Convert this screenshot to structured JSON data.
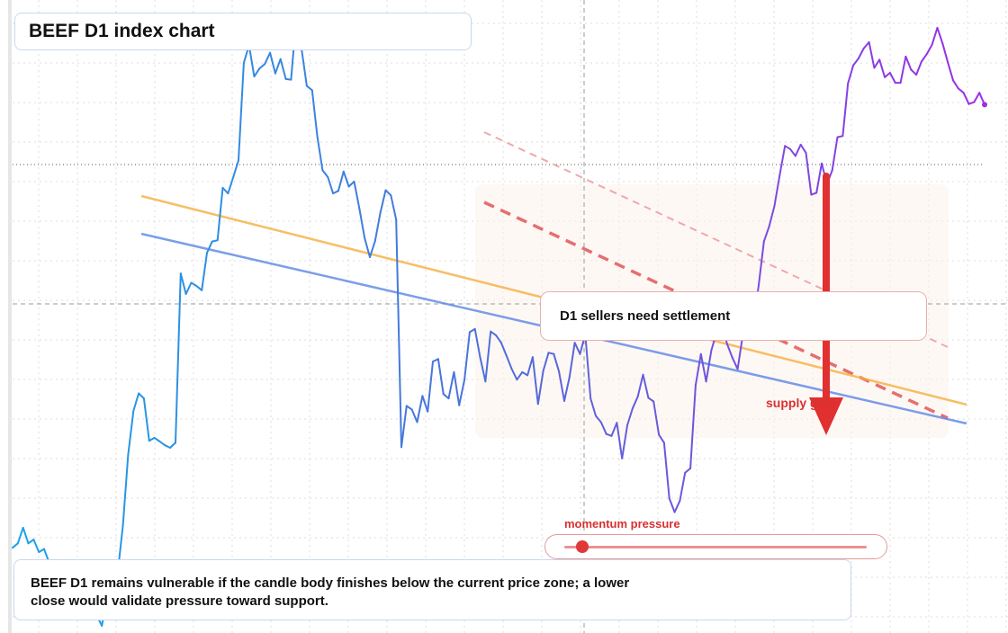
{
  "title": "BEEF D1 index chart",
  "annotation": "D1 sellers need settlement",
  "zone_label": "supply gate",
  "momentum": {
    "label": "momentum pressure",
    "value": 0.06
  },
  "caption": "BEEF D1 remains vulnerable if the candle body finishes below the current price zone; a lower close would validate pressure toward support.",
  "colors": {
    "series_start": "#1aa3e8",
    "series_mid": "#4f6fd9",
    "series_end": "#9b2fe6",
    "ma_fast": "#f5b041",
    "ma_slow": "#5b86e5",
    "bearish": "#e03030",
    "zone": "#fdf3ec"
  },
  "chart_data": {
    "type": "line",
    "title": "BEEF D1 index chart",
    "x_range": [
      0,
      180
    ],
    "y_range": [
      0,
      100
    ],
    "grid": true,
    "series": [
      {
        "values": [
          13.5,
          14.2,
          16.7,
          14.2,
          14.8,
          12.8,
          13.3,
          11.0,
          11.5,
          9.3,
          10.0,
          8.0,
          6.2,
          5.4,
          5.6,
          4.3,
          2.7,
          1.0,
          5.7,
          8.3,
          9.5,
          17.1,
          28.4,
          35.4,
          38.2,
          37.4,
          30.6,
          31.1,
          30.5,
          29.9,
          29.5,
          30.3,
          57.4,
          54.1,
          55.9,
          55.4,
          54.7,
          60.7,
          62.5,
          62.7,
          71.1,
          70.2,
          72.8,
          75.5,
          91.1,
          93.9,
          88.9,
          90.2,
          90.9,
          92.7,
          89.4,
          91.7,
          88.5,
          88.4,
          98.3,
          93.3,
          87.4,
          86.7,
          79.3,
          73.9,
          72.8,
          70.2,
          70.6,
          73.7,
          71.3,
          72.1,
          67.8,
          63.1,
          60.0,
          62.6,
          67.1,
          70.7,
          69.9,
          66.0,
          29.6,
          36.2,
          35.6,
          33.6,
          37.8,
          35.3,
          43.3,
          43.7,
          38.1,
          37.4,
          41.6,
          36.3,
          40.4,
          48.0,
          48.5,
          43.9,
          40.1,
          48.1,
          47.5,
          46.3,
          44.2,
          42.1,
          40.4,
          41.6,
          41.1,
          44.0,
          36.5,
          41.8,
          44.7,
          44.5,
          41.7,
          37.0,
          40.8,
          46.3,
          44.5,
          47.7,
          37.4,
          34.6,
          33.6,
          31.7,
          31.4,
          33.5,
          27.8,
          33.1,
          35.8,
          37.7,
          41.2,
          37.5,
          36.9,
          31.6,
          30.3,
          21.4,
          19.2,
          21.0,
          25.5,
          26.2,
          39.5,
          44.5,
          40.1,
          45.1,
          48.0,
          49.3,
          46.1,
          43.9,
          42.1,
          47.7,
          51.3,
          49.3,
          55.5,
          62.5,
          64.9,
          68.2,
          73.1,
          77.8,
          77.3,
          76.2,
          78.0,
          76.7,
          70.0,
          70.3,
          75.0,
          71.7,
          73.9,
          79.2,
          79.4,
          87.8,
          90.7,
          91.8,
          93.4,
          94.4,
          90.3,
          91.6,
          88.8,
          89.5,
          87.9,
          87.9,
          92.1,
          90.0,
          89.2,
          91.3,
          92.5,
          94.0,
          96.7,
          94.2,
          91.2,
          88.3,
          87.0,
          86.3,
          84.5,
          84.8,
          86.3,
          84.4
        ]
      }
    ],
    "moving_averages": [
      {
        "points": [
          [
            0,
            68.0
          ],
          [
            180,
            34.0
          ]
        ]
      },
      {
        "points": [
          [
            0,
            60.0
          ],
          [
            180,
            30.0
          ]
        ]
      }
    ]
  }
}
